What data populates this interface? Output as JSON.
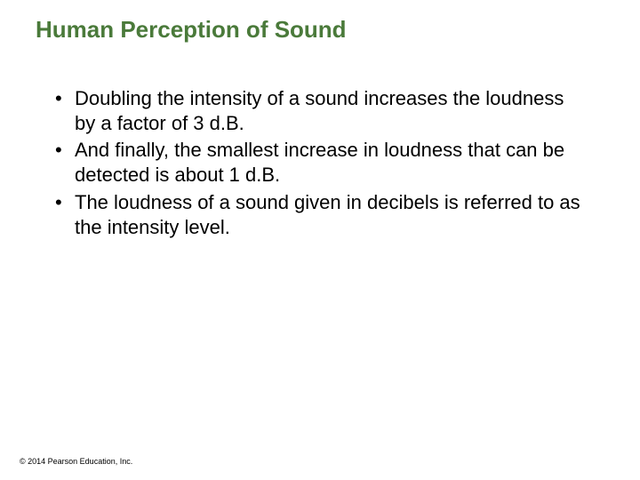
{
  "title": "Human Perception of Sound",
  "bullets": [
    "Doubling the intensity of a sound increases the loudness by a factor of 3 d.B.",
    "And finally, the smallest increase in loudness that can be detected is about 1 d.B.",
    "The loudness of a sound given in decibels is referred to as the intensity level."
  ],
  "footer": "© 2014 Pearson Education, Inc.",
  "colors": {
    "title_color": "#4a7a3a",
    "text_color": "#000000",
    "background": "#ffffff"
  },
  "fonts": {
    "title_size": 26,
    "body_size": 22,
    "footer_size": 9
  }
}
